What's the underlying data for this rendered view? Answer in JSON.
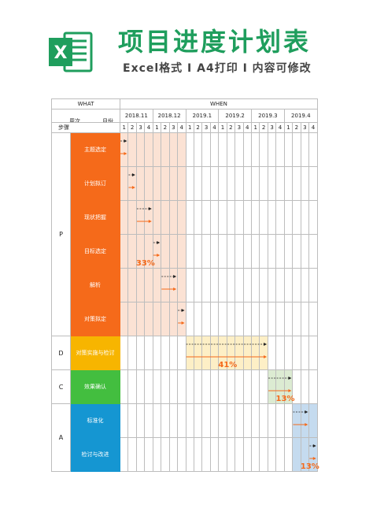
{
  "header": {
    "title": "项目进度计划表",
    "subtitle": "Excel格式 Ⅰ A4打印 Ⅰ 内容可修改",
    "logo_letter": "X"
  },
  "table": {
    "what_label": "WHAT",
    "when_label": "WHEN",
    "week_label": "周次",
    "month_label": "月份",
    "step_label": "步骤",
    "months": [
      "2018.11",
      "2018.12",
      "2019.1",
      "2019.2",
      "2019.3",
      "2019.4"
    ],
    "week_numbers": [
      "1",
      "2",
      "3",
      "4",
      "1",
      "2",
      "3",
      "4",
      "1",
      "2",
      "3",
      "4",
      "1",
      "2",
      "3",
      "4",
      "1",
      "2",
      "3",
      "4",
      "1",
      "2",
      "3",
      "4"
    ],
    "categories": [
      "P",
      "D",
      "C",
      "A"
    ],
    "steps": [
      {
        "label": "主题选定",
        "color": "#f56a1a"
      },
      {
        "label": "计划拟订",
        "color": "#f56a1a"
      },
      {
        "label": "现状把握",
        "color": "#f56a1a"
      },
      {
        "label": "目标选定",
        "color": "#f56a1a"
      },
      {
        "label": "解析",
        "color": "#f56a1a"
      },
      {
        "label": "对策拟定",
        "color": "#f56a1a"
      },
      {
        "label": "对策实施与检讨",
        "color": "#f7b500"
      },
      {
        "label": "效果确认",
        "color": "#43be3f"
      },
      {
        "label": "标准化",
        "color": "#1596d2"
      },
      {
        "label": "检讨与改进",
        "color": "#1596d2"
      }
    ],
    "phase_percents": [
      "33%",
      "41%",
      "13%",
      "13%"
    ],
    "phase_colors": {
      "P": "#fbe2d4",
      "D": "#fdefc6",
      "C": "#dcebd2",
      "A": "#c5dbef"
    },
    "plan_arrow_color": "#222222",
    "actual_arrow_color": "#f56a1a"
  }
}
